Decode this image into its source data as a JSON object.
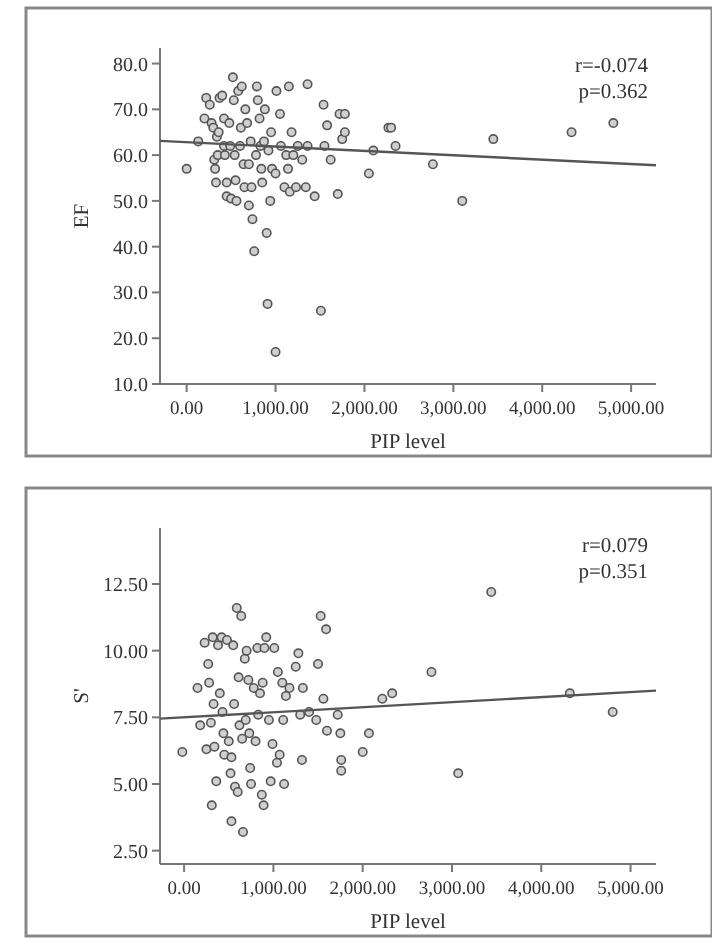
{
  "chart_data": [
    {
      "type": "scatter",
      "xlabel": "PIP level",
      "ylabel": "EF",
      "xlim": [
        -300,
        5280
      ],
      "ylim": [
        10,
        83.4
      ],
      "xticks": [
        {
          "value": 0,
          "label": "0.00"
        },
        {
          "value": 1000,
          "label": "1,000.00"
        },
        {
          "value": 2000,
          "label": "2,000.00"
        },
        {
          "value": 3000,
          "label": "3,000.00"
        },
        {
          "value": 4000,
          "label": "4,000.00"
        },
        {
          "value": 5000,
          "label": "5,000.00"
        }
      ],
      "yticks": [
        {
          "value": 10,
          "label": "10.0"
        },
        {
          "value": 20,
          "label": "20.0"
        },
        {
          "value": 30,
          "label": "30.0"
        },
        {
          "value": 40,
          "label": "40.0"
        },
        {
          "value": 50,
          "label": "50.0"
        },
        {
          "value": 60,
          "label": "60.0"
        },
        {
          "value": 70,
          "label": "70.0"
        },
        {
          "value": 80,
          "label": "80.0"
        }
      ],
      "grid": false,
      "marker": "circle",
      "annotations": [
        "r=-0.074",
        "p=0.362"
      ],
      "series": [
        {
          "color": "#555555",
          "x": [
            0,
            130,
            200,
            220,
            260,
            280,
            300,
            310,
            320,
            330,
            340,
            350,
            360,
            370,
            400,
            420,
            420,
            430,
            450,
            450,
            480,
            490,
            500,
            520,
            530,
            540,
            550,
            560,
            580,
            600,
            610,
            620,
            640,
            650,
            660,
            680,
            700,
            700,
            720,
            730,
            740,
            760,
            780,
            790,
            800,
            820,
            830,
            840,
            850,
            870,
            880,
            900,
            910,
            920,
            940,
            950,
            960,
            1000,
            1000,
            1010,
            1050,
            1060,
            1100,
            1120,
            1140,
            1150,
            1160,
            1180,
            1200,
            1230,
            1250,
            1300,
            1340,
            1360,
            1360,
            1440,
            1510,
            1540,
            1550,
            1580,
            1620,
            1700,
            1720,
            1750,
            1780,
            1780,
            2050,
            2100,
            2270,
            2300,
            2350,
            2770,
            3100,
            3450,
            4330,
            4800
          ],
          "values": [
            57,
            63,
            68,
            72.5,
            71,
            67,
            66,
            59,
            57,
            54,
            64,
            60,
            65,
            72.5,
            73,
            68,
            62,
            60,
            54,
            51,
            67,
            62,
            50.5,
            77,
            72,
            60,
            54.5,
            50,
            74,
            62,
            66,
            75,
            58,
            53,
            70,
            67,
            58,
            49,
            63,
            53,
            46,
            39,
            60,
            75,
            72,
            68,
            62,
            57,
            54,
            63,
            70,
            43,
            27.5,
            61,
            50,
            65,
            57,
            17,
            56,
            74,
            69,
            62,
            53,
            60,
            57,
            75,
            52,
            65,
            60,
            53,
            62,
            59,
            53,
            75.5,
            62,
            51,
            26,
            71,
            62,
            66.5,
            59,
            51.5,
            69,
            63.5,
            69,
            65,
            56,
            61,
            66,
            66,
            62,
            58,
            50,
            63.5,
            65,
            67
          ]
        },
        {
          "type": "line",
          "color": "#555555",
          "marker": "none",
          "x": [
            -300,
            5280
          ],
          "values": [
            63.1,
            57.8
          ]
        }
      ]
    },
    {
      "type": "scatter",
      "xlabel": "PIP level",
      "ylabel": "S'",
      "xlim": [
        -270,
        5285
      ],
      "ylim": [
        2,
        14.6
      ],
      "xticks": [
        {
          "value": 0,
          "label": "0.00"
        },
        {
          "value": 1000,
          "label": "1,000.00"
        },
        {
          "value": 2000,
          "label": "2,000.00"
        },
        {
          "value": 3000,
          "label": "3,000.00"
        },
        {
          "value": 4000,
          "label": "4,000.00"
        },
        {
          "value": 5000,
          "label": "5,000.00"
        }
      ],
      "yticks": [
        {
          "value": 2.5,
          "label": "2.50"
        },
        {
          "value": 5,
          "label": "5.00"
        },
        {
          "value": 7.5,
          "label": "7.50"
        },
        {
          "value": 10,
          "label": "10.00"
        },
        {
          "value": 12.5,
          "label": "12.50"
        }
      ],
      "grid": false,
      "marker": "circle",
      "annotations": [
        "r=0.079",
        "p=0.351"
      ],
      "series": [
        {
          "color": "#555555",
          "x": [
            -20,
            150,
            180,
            230,
            250,
            270,
            280,
            300,
            310,
            320,
            330,
            340,
            360,
            380,
            400,
            420,
            430,
            440,
            450,
            480,
            500,
            520,
            530,
            530,
            550,
            560,
            570,
            590,
            600,
            610,
            620,
            640,
            650,
            660,
            680,
            690,
            700,
            720,
            730,
            740,
            750,
            780,
            800,
            820,
            830,
            850,
            870,
            880,
            890,
            900,
            920,
            950,
            970,
            990,
            1010,
            1040,
            1050,
            1070,
            1100,
            1110,
            1120,
            1140,
            1180,
            1250,
            1280,
            1300,
            1320,
            1330,
            1400,
            1480,
            1500,
            1530,
            1560,
            1590,
            1600,
            1720,
            1750,
            1760,
            1760,
            2000,
            2070,
            2220,
            2330,
            2770,
            3070,
            3440,
            4320,
            4800
          ],
          "values": [
            6.2,
            8.6,
            7.2,
            10.3,
            6.3,
            9.5,
            8.8,
            7.3,
            4.2,
            10.5,
            8.0,
            6.4,
            5.1,
            10.2,
            8.4,
            10.5,
            7.7,
            6.9,
            6.1,
            10.4,
            6.6,
            5.4,
            6.0,
            3.6,
            10.2,
            8.0,
            4.9,
            11.6,
            4.7,
            9.0,
            7.2,
            11.3,
            6.7,
            3.2,
            9.7,
            7.4,
            10.0,
            8.9,
            6.9,
            5.6,
            5.0,
            8.6,
            6.6,
            10.1,
            7.6,
            8.4,
            4.6,
            8.8,
            4.2,
            10.1,
            10.5,
            7.4,
            5.1,
            6.5,
            10.1,
            5.8,
            9.2,
            6.1,
            8.8,
            7.4,
            5.0,
            8.3,
            8.6,
            9.4,
            9.9,
            7.6,
            5.9,
            8.6,
            7.7,
            7.4,
            9.5,
            11.3,
            8.2,
            10.8,
            7.0,
            7.6,
            6.9,
            5.9,
            5.5,
            6.2,
            6.9,
            8.2,
            8.4,
            9.2,
            5.4,
            12.2,
            8.4,
            7.7
          ]
        },
        {
          "type": "line",
          "color": "#555555",
          "marker": "none",
          "x": [
            -270,
            5285
          ],
          "values": [
            7.45,
            8.5
          ]
        }
      ]
    }
  ]
}
